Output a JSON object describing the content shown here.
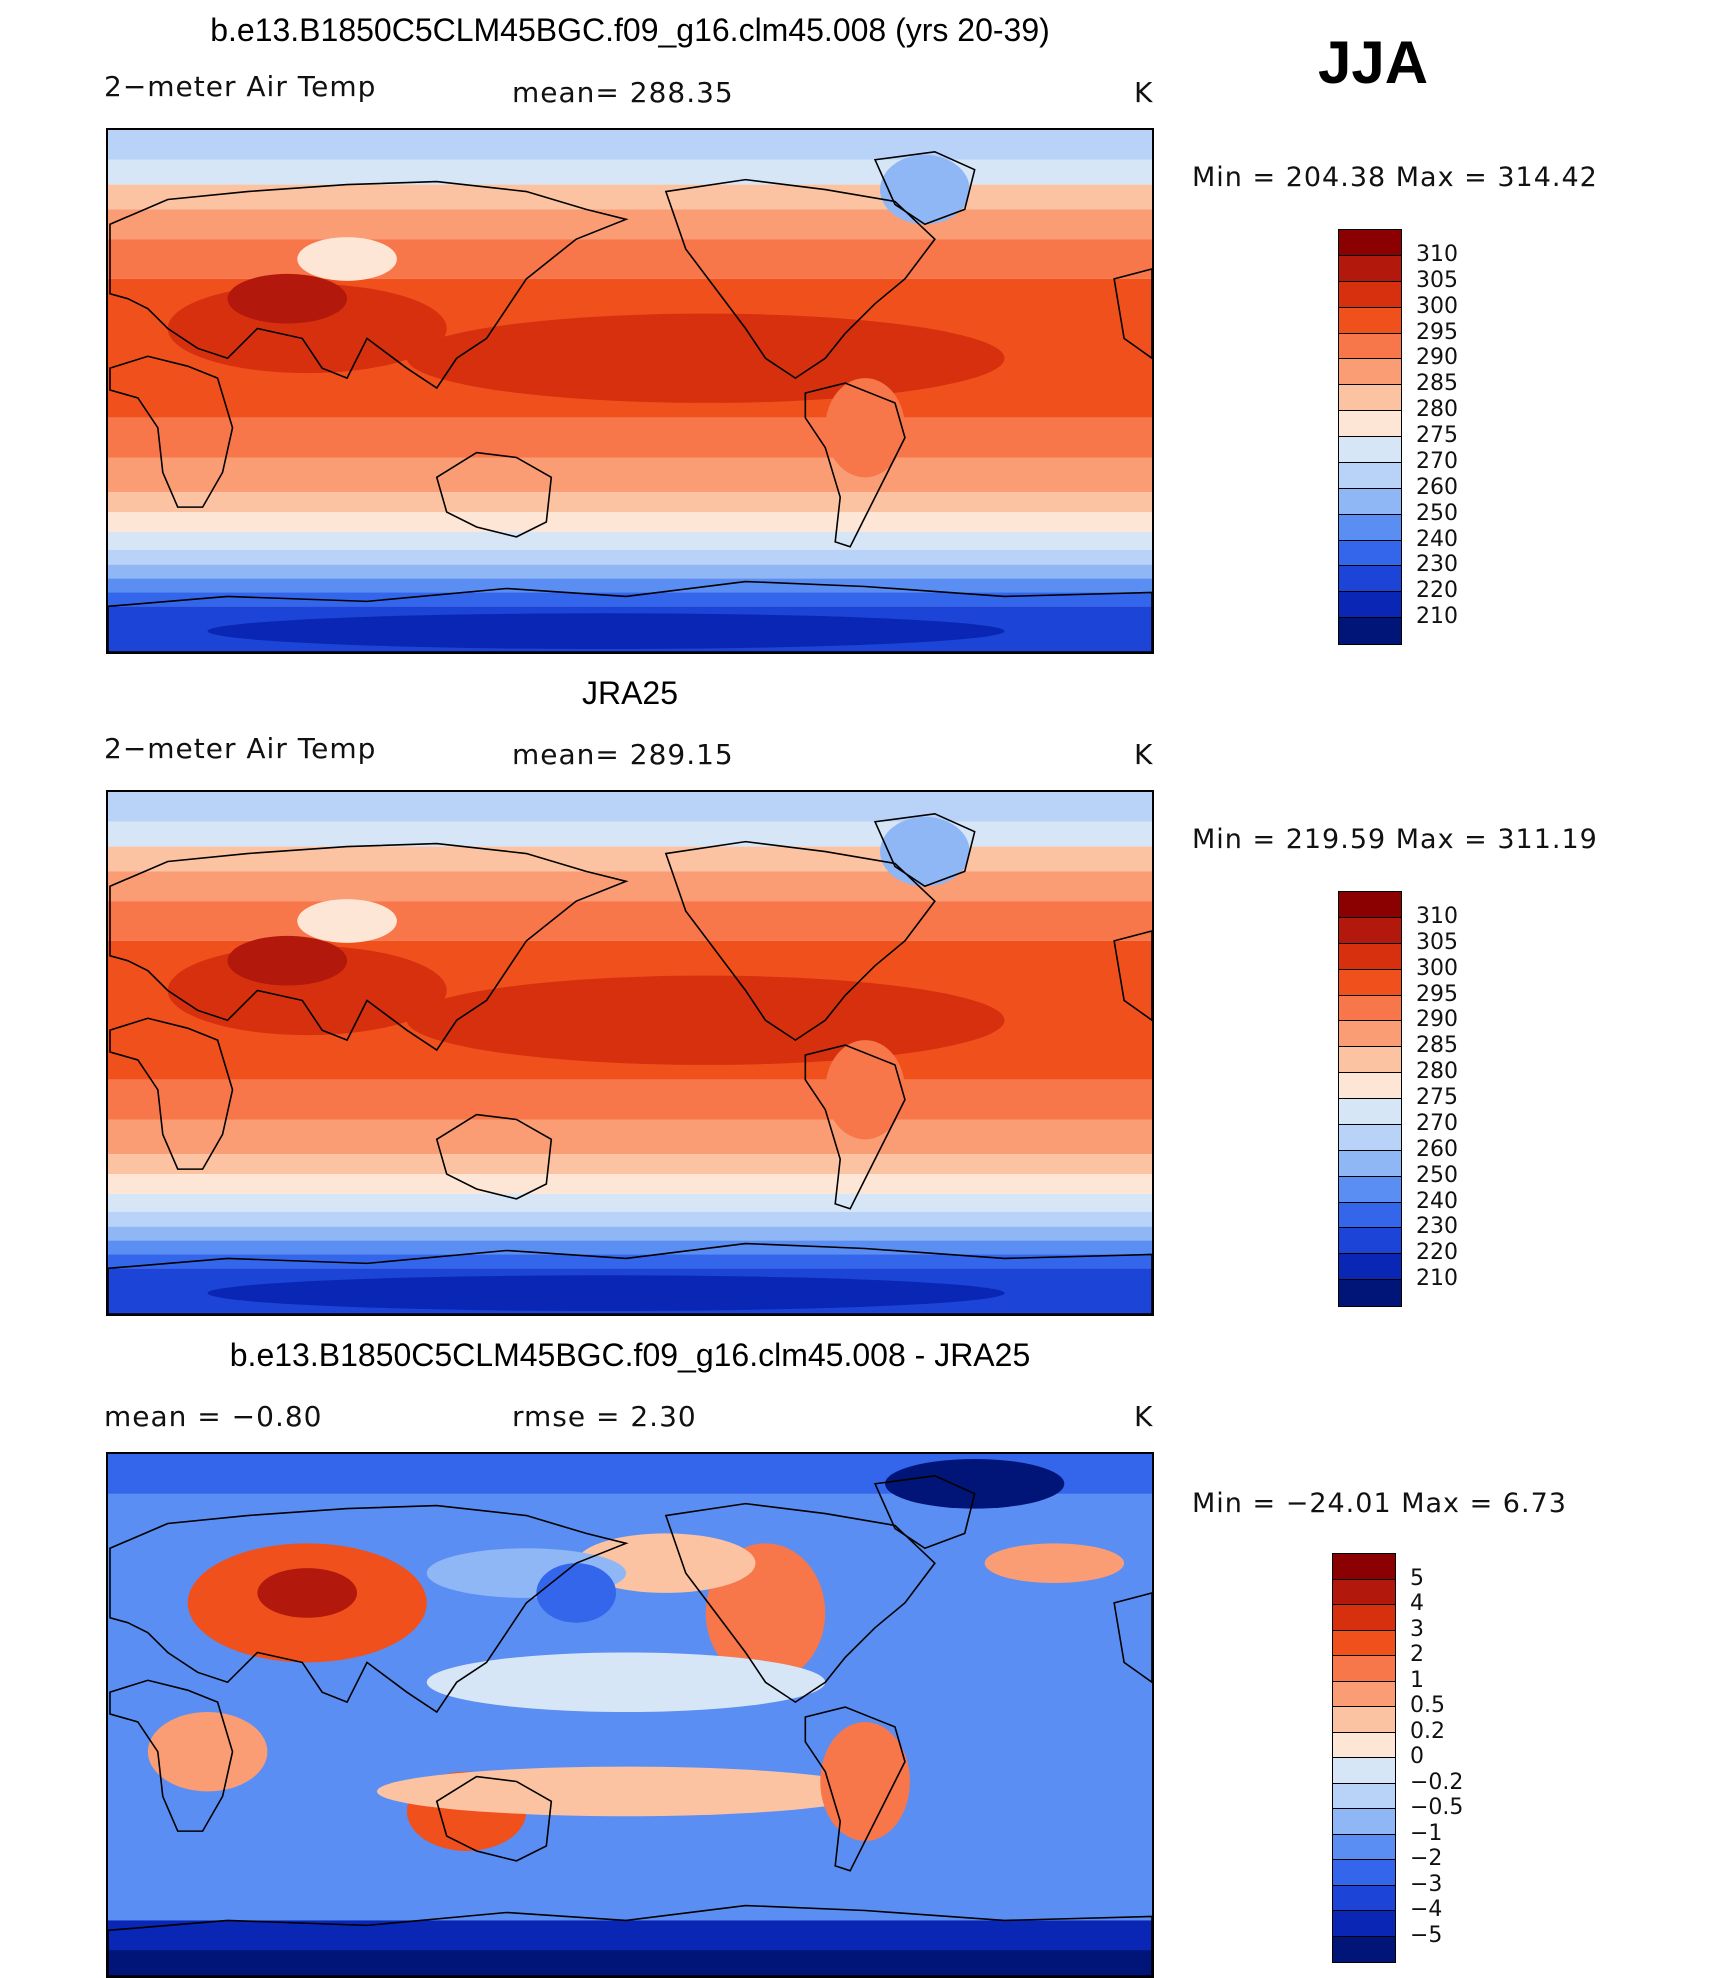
{
  "season": "JJA",
  "panels": [
    {
      "title": "b.e13.B1850C5CLM45BGC.f09_g16.clm45.008 (yrs 20-39)",
      "left_label": "2−meter Air Temp",
      "center_label": "mean=  288.35",
      "units": "K",
      "minmax": "Min  =  204.38  Max  =  314.42",
      "colorbar": {
        "labels": [
          "310",
          "305",
          "300",
          "295",
          "290",
          "285",
          "280",
          "275",
          "270",
          "260",
          "250",
          "240",
          "230",
          "220",
          "210"
        ],
        "colors": [
          "#8b0000",
          "#b2180b",
          "#d6300e",
          "#f0501c",
          "#f7764a",
          "#fa9d75",
          "#fcc3a3",
          "#fde6d6",
          "#d6e6f7",
          "#b9d2f7",
          "#8fb6f5",
          "#5b8ef2",
          "#3466ec",
          "#1c44d6",
          "#0a26b5",
          "#001577"
        ]
      },
      "map_scheme": "warm"
    },
    {
      "title": "JRA25",
      "left_label": "2−meter Air Temp",
      "center_label": "mean=  289.15",
      "units": "K",
      "minmax": "Min  =  219.59  Max  =  311.19",
      "colorbar": {
        "labels": [
          "310",
          "305",
          "300",
          "295",
          "290",
          "285",
          "280",
          "275",
          "270",
          "260",
          "250",
          "240",
          "230",
          "220",
          "210"
        ],
        "colors": [
          "#8b0000",
          "#b2180b",
          "#d6300e",
          "#f0501c",
          "#f7764a",
          "#fa9d75",
          "#fcc3a3",
          "#fde6d6",
          "#d6e6f7",
          "#b9d2f7",
          "#8fb6f5",
          "#5b8ef2",
          "#3466ec",
          "#1c44d6",
          "#0a26b5",
          "#001577"
        ]
      },
      "map_scheme": "warm"
    },
    {
      "title": "b.e13.B1850C5CLM45BGC.f09_g16.clm45.008 - JRA25",
      "left_label": "mean  =     −0.80",
      "center_label": "rmse  =      2.30",
      "units": "K",
      "minmax": "Min  =  −24.01  Max  =       6.73",
      "colorbar": {
        "labels": [
          "5",
          "4",
          "3",
          "2",
          "1",
          "0.5",
          "0.2",
          "0",
          "−0.2",
          "−0.5",
          "−1",
          "−2",
          "−3",
          "−4",
          "−5"
        ],
        "colors": [
          "#8b0000",
          "#b2180b",
          "#d6300e",
          "#f0501c",
          "#f7764a",
          "#fa9d75",
          "#fcc3a3",
          "#fde6d6",
          "#d6e6f7",
          "#b9d2f7",
          "#8fb6f5",
          "#5b8ef2",
          "#3466ec",
          "#1c44d6",
          "#0a26b5",
          "#001577"
        ]
      },
      "map_scheme": "diff"
    }
  ]
}
